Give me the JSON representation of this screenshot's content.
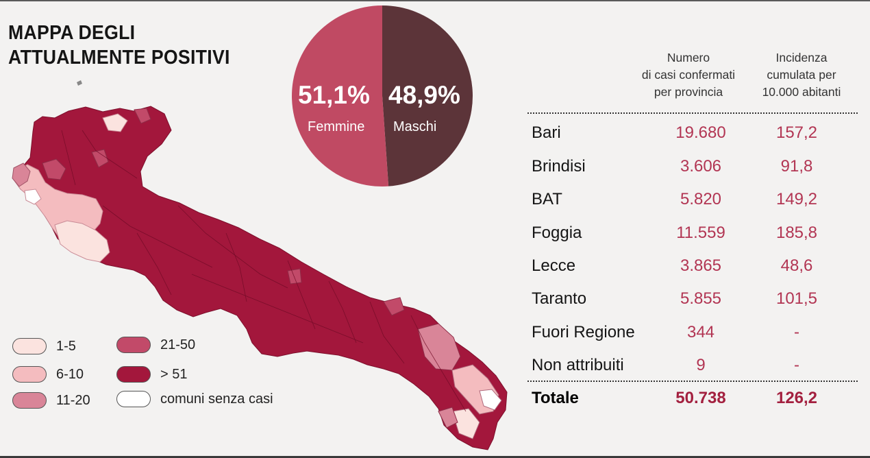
{
  "title": {
    "line1": "MAPPA DEGLI",
    "line2": "ATTUALMENTE POSITIVI"
  },
  "colors": {
    "c1": "#fbe3df",
    "c2": "#f4bcbf",
    "c3": "#d98598",
    "c4": "#c24a69",
    "c5": "#a3173c",
    "c0": "#ffffff",
    "female": "#c04a63",
    "male": "#5c3439",
    "number": "#b23553"
  },
  "legend": [
    {
      "label": "1-5",
      "color": "#fbe3df"
    },
    {
      "label": "6-10",
      "color": "#f4bcbf"
    },
    {
      "label": "11-20",
      "color": "#d98598"
    },
    {
      "label": "21-50",
      "color": "#c24a69"
    },
    {
      "label": "> 51",
      "color": "#a3173c"
    },
    {
      "label": "comuni senza casi",
      "color": "#ffffff"
    }
  ],
  "chart_data": [
    {
      "type": "pie",
      "slices": [
        {
          "label": "Femmine",
          "value": 51.1,
          "display": "51,1%",
          "color": "#c04a63"
        },
        {
          "label": "Maschi",
          "value": 48.9,
          "display": "48,9%",
          "color": "#5c3439"
        }
      ]
    },
    {
      "type": "table",
      "columns": [
        "",
        "Numero di casi confermati per provincia",
        "Incidenza cumulata per 10.000 abitanti"
      ],
      "rows": [
        {
          "provincia": "Bari",
          "casi": "19.680",
          "incidenza": "157,2"
        },
        {
          "provincia": "Brindisi",
          "casi": "3.606",
          "incidenza": "91,8"
        },
        {
          "provincia": "BAT",
          "casi": "5.820",
          "incidenza": "149,2"
        },
        {
          "provincia": "Foggia",
          "casi": "11.559",
          "incidenza": "185,8"
        },
        {
          "provincia": "Lecce",
          "casi": "3.865",
          "incidenza": "48,6"
        },
        {
          "provincia": "Taranto",
          "casi": "5.855",
          "incidenza": "101,5"
        },
        {
          "provincia": "Fuori Regione",
          "casi": "344",
          "incidenza": "-"
        },
        {
          "provincia": "Non attribuiti",
          "casi": "9",
          "incidenza": "-"
        }
      ],
      "total": {
        "provincia": "Totale",
        "casi": "50.738",
        "incidenza": "126,2"
      }
    }
  ],
  "table_header": {
    "col1": [
      "Numero",
      "di casi confermati",
      "per provincia"
    ],
    "col2": [
      "Incidenza",
      "cumulata per",
      "10.000 abitanti"
    ]
  }
}
